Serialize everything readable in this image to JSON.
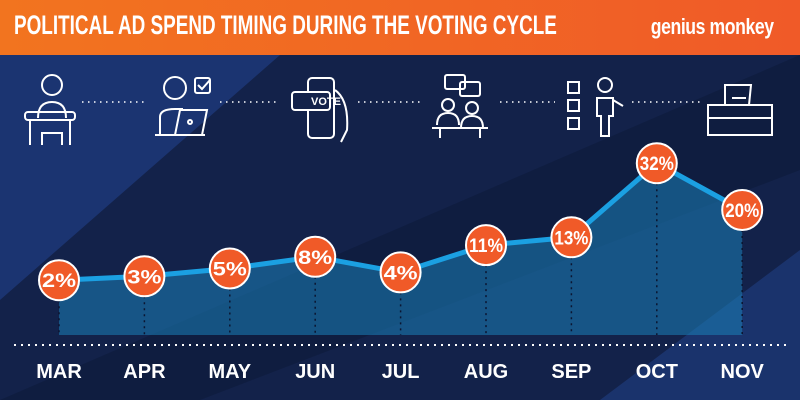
{
  "header": {
    "title": "POLITICAL AD SPEND TIMING DURING THE VOTING CYCLE",
    "logo": "genius monkey"
  },
  "icons": [
    "podium-speaker-icon",
    "laptop-checkbox-icon",
    "phone-vote-icon",
    "debate-icon",
    "checklist-person-icon",
    "ballot-box-icon"
  ],
  "vote_text": "VOTE",
  "colors": {
    "accent": "#f05a28",
    "line": "#1ba0e2",
    "background": "#13224a"
  },
  "chart_data": {
    "type": "area",
    "categories": [
      "MAR",
      "APR",
      "MAY",
      "JUN",
      "JUL",
      "AUG",
      "SEP",
      "OCT",
      "NOV"
    ],
    "values": [
      2,
      3,
      5,
      8,
      4,
      11,
      13,
      32,
      20
    ],
    "labels": [
      "2%",
      "3%",
      "5%",
      "8%",
      "4%",
      "11%",
      "13%",
      "32%",
      "20%"
    ],
    "unit": "%"
  }
}
